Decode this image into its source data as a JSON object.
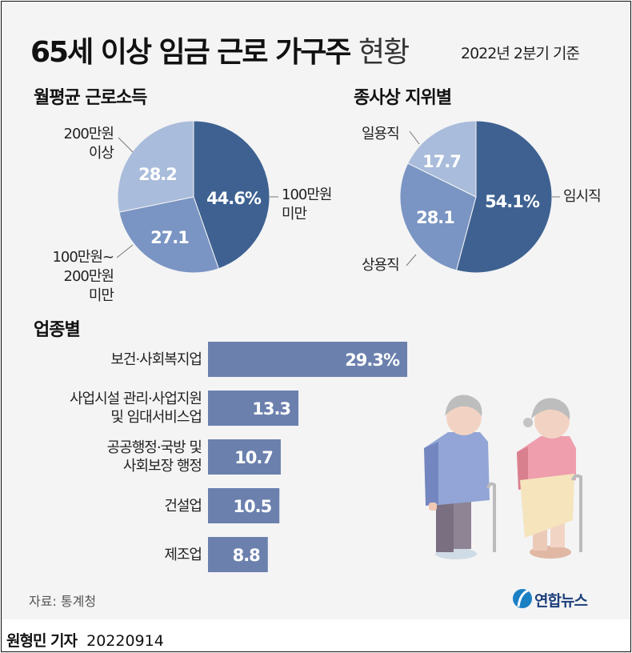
{
  "header": {
    "title_bold": "65세 이상 임금 근로 가구주",
    "title_light": "현황",
    "subtitle": "2022년 2분기 기준"
  },
  "colors": {
    "dark": "#3e6191",
    "mid": "#7a95c3",
    "light": "#aabcdb",
    "bar": "#6b80ad",
    "background": "#f4f4f5"
  },
  "chart_data": [
    {
      "type": "pie",
      "title": "월평균 근로소득",
      "slices": [
        {
          "label": "100만원 미만",
          "value": 44.6,
          "display": "44.6%",
          "color": "#3e6191"
        },
        {
          "label": "100만원~200만원 미만",
          "value": 27.1,
          "display": "27.1",
          "color": "#7a95c3"
        },
        {
          "label": "200만원 이상",
          "value": 28.2,
          "display": "28.2",
          "color": "#aabcdb"
        }
      ]
    },
    {
      "type": "pie",
      "title": "종사상 지위별",
      "slices": [
        {
          "label": "임시직",
          "value": 54.1,
          "display": "54.1%",
          "color": "#3e6191"
        },
        {
          "label": "상용직",
          "value": 28.1,
          "display": "28.1",
          "color": "#7a95c3"
        },
        {
          "label": "일용직",
          "value": 17.7,
          "display": "17.7",
          "color": "#aabcdb"
        }
      ]
    },
    {
      "type": "bar",
      "title": "업종별",
      "orientation": "horizontal",
      "categories": [
        "보건·사회복지업",
        "사업시설 관리·사업지원 및 임대서비스업",
        "공공행정·국방 및 사회보장 행정",
        "건설업",
        "제조업"
      ],
      "category_lines": [
        [
          "보건·사회복지업"
        ],
        [
          "사업시설 관리·사업지원",
          "및 임대서비스업"
        ],
        [
          "공공행정·국방 및",
          "사회보장 행정"
        ],
        [
          "건설업"
        ],
        [
          "제조업"
        ]
      ],
      "values": [
        29.3,
        13.3,
        10.7,
        10.5,
        8.8
      ],
      "value_labels": [
        "29.3%",
        "13.3",
        "10.7",
        "10.5",
        "8.8"
      ]
    }
  ],
  "pie_labels": {
    "income": {
      "a1": "100만원",
      "a2": "미만",
      "b1": "100만원~",
      "b2": "200만원",
      "b3": "미만",
      "c1": "200만원",
      "c2": "이상"
    }
  },
  "footer": {
    "source": "자료: 통계청",
    "logo_text": "연합뉴스",
    "reporter": "원형민 기자",
    "date": "20220914"
  }
}
